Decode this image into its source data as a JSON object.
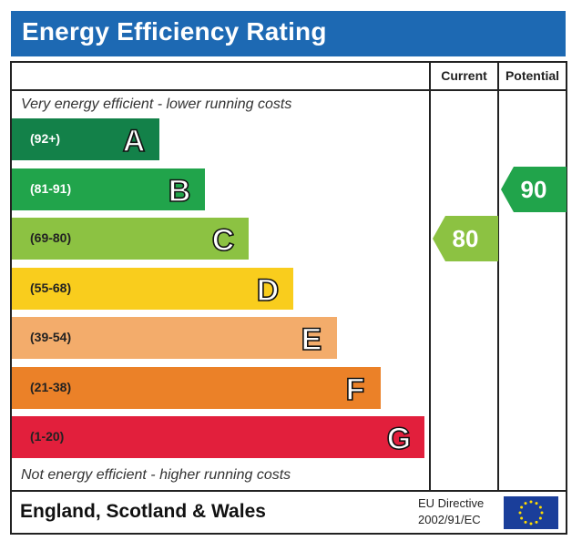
{
  "title": "Energy Efficiency Rating",
  "columns": {
    "current": "Current",
    "potential": "Potential"
  },
  "captions": {
    "top": "Very energy efficient - lower running costs",
    "bottom": "Not energy efficient - higher running costs"
  },
  "colors": {
    "header": "#1d69b3",
    "A": "#138149",
    "B": "#21a44b",
    "C": "#8cc242",
    "D": "#f9cd1d",
    "E": "#f3ac6b",
    "F": "#eb8128",
    "G": "#e21f3c",
    "eu_blue": "#1a3e9a",
    "eu_star": "#ffdd00"
  },
  "chart_data": {
    "type": "bar",
    "categories": [
      "A",
      "B",
      "C",
      "D",
      "E",
      "F",
      "G"
    ],
    "ranges": [
      "(92+)",
      "(81-91)",
      "(69-80)",
      "(55-68)",
      "(39-54)",
      "(21-38)",
      "(1-20)"
    ],
    "current": {
      "value": 80,
      "band": "C"
    },
    "potential": {
      "value": 90,
      "band": "B"
    }
  },
  "footer": {
    "region": "England, Scotland & Wales",
    "directive_line1": "EU Directive",
    "directive_line2": "2002/91/EC"
  },
  "icons": {
    "eu_flag": "eu-flag-icon"
  }
}
